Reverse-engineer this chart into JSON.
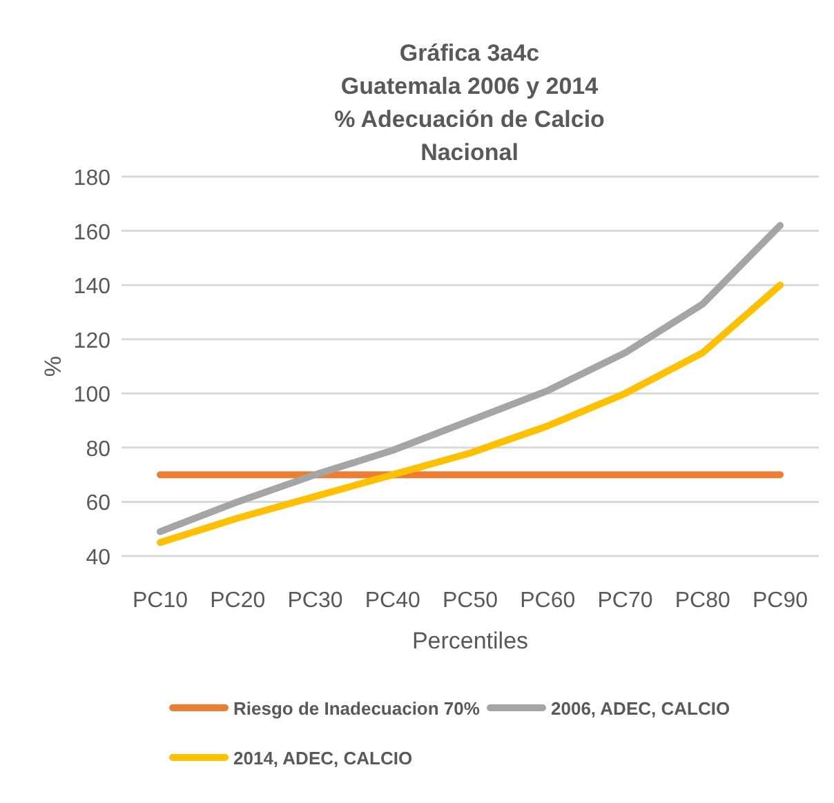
{
  "chart_data": {
    "type": "line",
    "title": "Gráfica 3a4c\nGuatemala 2006 y 2014\n% Adecuación de Calcio\nNacional",
    "xlabel": "Percentiles",
    "ylabel": "%",
    "categories": [
      "PC10",
      "PC20",
      "PC30",
      "PC40",
      "PC50",
      "PC60",
      "PC70",
      "PC80",
      "PC90"
    ],
    "series": [
      {
        "name": "Riesgo de Inadecuacion 70%",
        "color": "#ed7d31",
        "values": [
          70,
          70,
          70,
          70,
          70,
          70,
          70,
          70,
          70
        ]
      },
      {
        "name": "2006, ADEC, CALCIO",
        "color": "#a5a5a5",
        "values": [
          49,
          60,
          70,
          79,
          90,
          101,
          115,
          133,
          162
        ]
      },
      {
        "name": "2014, ADEC, CALCIO",
        "color": "#ffc000",
        "values": [
          45,
          54,
          62,
          70,
          78,
          88,
          100,
          115,
          140
        ]
      }
    ],
    "ylim": [
      40,
      180
    ],
    "yticks": [
      40,
      60,
      80,
      100,
      120,
      140,
      160,
      180
    ],
    "grid": "y",
    "legend": "bottom",
    "marker": "none",
    "line_style": "solid"
  }
}
